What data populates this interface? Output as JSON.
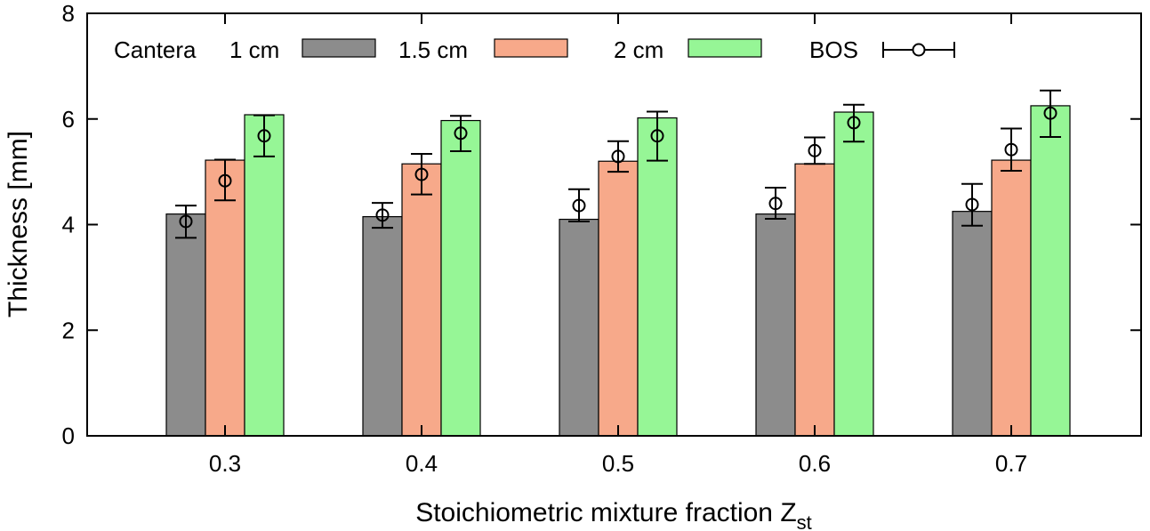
{
  "chart_data": {
    "type": "bar",
    "title": "",
    "xlabel": "Stoichiometric mixture fraction Z",
    "xlabel_subscript": "st",
    "ylabel": "Thickness [mm]",
    "ylim": [
      0,
      8
    ],
    "yticks": [
      "0",
      "2",
      "4",
      "6",
      "8"
    ],
    "categories": [
      "0.3",
      "0.4",
      "0.5",
      "0.6",
      "0.7"
    ],
    "legend_title": "Cantera",
    "legend_position": "top-left (inside)",
    "series": [
      {
        "name": "1 cm",
        "color": "#8c8c8c",
        "values": [
          4.2,
          4.15,
          4.1,
          4.2,
          4.25
        ]
      },
      {
        "name": "1.5 cm",
        "color": "#f7a98a",
        "values": [
          5.22,
          5.15,
          5.2,
          5.15,
          5.22
        ]
      },
      {
        "name": "2 cm",
        "color": "#96f696",
        "values": [
          6.08,
          5.97,
          6.02,
          6.13,
          6.25
        ]
      }
    ],
    "bos": {
      "name": "BOS",
      "points": [
        {
          "category": "0.3",
          "series": "1 cm",
          "value": 4.06,
          "low": 3.75,
          "high": 4.36
        },
        {
          "category": "0.3",
          "series": "1.5 cm",
          "value": 4.83,
          "low": 4.46,
          "high": 5.23
        },
        {
          "category": "0.3",
          "series": "2 cm",
          "value": 5.68,
          "low": 5.29,
          "high": 6.07
        },
        {
          "category": "0.4",
          "series": "1 cm",
          "value": 4.18,
          "low": 3.94,
          "high": 4.41
        },
        {
          "category": "0.4",
          "series": "1.5 cm",
          "value": 4.95,
          "low": 4.57,
          "high": 5.34
        },
        {
          "category": "0.4",
          "series": "2 cm",
          "value": 5.73,
          "low": 5.39,
          "high": 6.06
        },
        {
          "category": "0.5",
          "series": "1 cm",
          "value": 4.36,
          "low": 4.06,
          "high": 4.67
        },
        {
          "category": "0.5",
          "series": "1.5 cm",
          "value": 5.29,
          "low": 5.0,
          "high": 5.58
        },
        {
          "category": "0.5",
          "series": "2 cm",
          "value": 5.68,
          "low": 5.21,
          "high": 6.14
        },
        {
          "category": "0.6",
          "series": "1 cm",
          "value": 4.4,
          "low": 4.11,
          "high": 4.7
        },
        {
          "category": "0.6",
          "series": "1.5 cm",
          "value": 5.4,
          "low": 5.15,
          "high": 5.65
        },
        {
          "category": "0.6",
          "series": "2 cm",
          "value": 5.93,
          "low": 5.57,
          "high": 6.27
        },
        {
          "category": "0.7",
          "series": "1 cm",
          "value": 4.38,
          "low": 3.98,
          "high": 4.77
        },
        {
          "category": "0.7",
          "series": "1.5 cm",
          "value": 5.42,
          "low": 5.02,
          "high": 5.82
        },
        {
          "category": "0.7",
          "series": "2 cm",
          "value": 6.11,
          "low": 5.66,
          "high": 6.54
        }
      ]
    },
    "grid": false
  }
}
